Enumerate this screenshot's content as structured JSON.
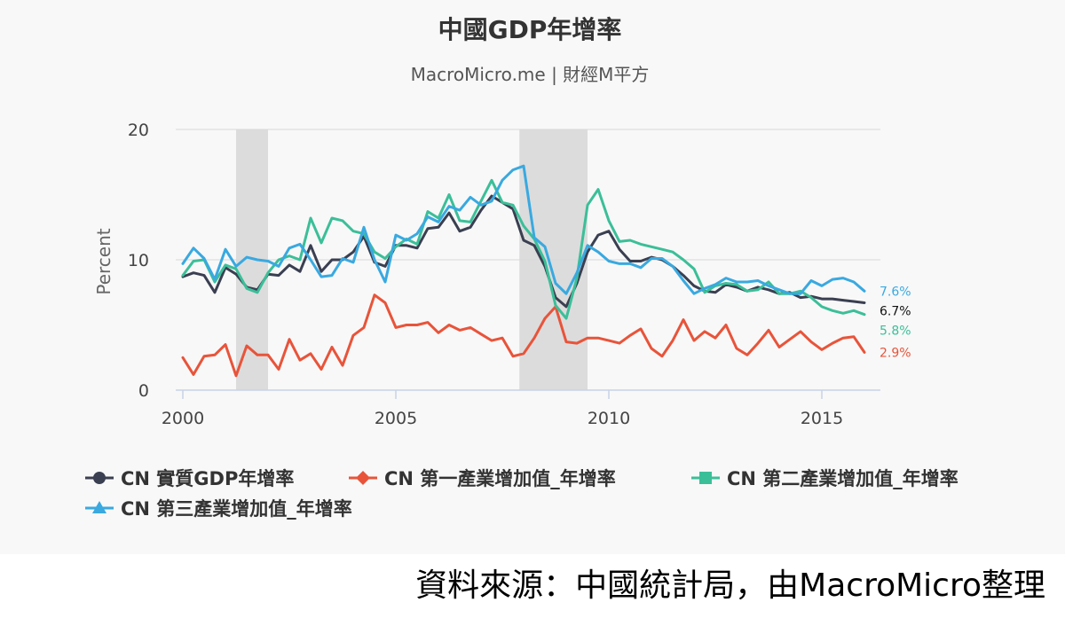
{
  "footer": {
    "source_note": "資料來源：中國統計局，由MacroMicro整理"
  },
  "colors": {
    "background": "#f8f8f8",
    "recession_band": "#dcdcdc",
    "grid": "#d8d8d8",
    "axis": "#c8d3e6"
  },
  "chart_data": {
    "type": "line",
    "title": "中國GDP年增率",
    "subtitle": "MacroMicro.me | 財經M平方",
    "ylabel": "Percent",
    "xlabel": "",
    "xlim": [
      2000.0,
      2016.25
    ],
    "ylim": [
      0,
      20
    ],
    "x_ticks": [
      2000,
      2005,
      2010,
      2015
    ],
    "y_ticks": [
      0,
      10,
      20
    ],
    "grid": "horizontal",
    "legend_position": "bottom-left",
    "recession_bands": [
      [
        2001.25,
        2002.0
      ],
      [
        2007.9,
        2009.5
      ]
    ],
    "x": [
      2000.0,
      2000.25,
      2000.5,
      2000.75,
      2001.0,
      2001.25,
      2001.5,
      2001.75,
      2002.0,
      2002.25,
      2002.5,
      2002.75,
      2003.0,
      2003.25,
      2003.5,
      2003.75,
      2004.0,
      2004.25,
      2004.5,
      2004.75,
      2005.0,
      2005.25,
      2005.5,
      2005.75,
      2006.0,
      2006.25,
      2006.5,
      2006.75,
      2007.0,
      2007.25,
      2007.5,
      2007.75,
      2008.0,
      2008.25,
      2008.5,
      2008.75,
      2009.0,
      2009.25,
      2009.5,
      2009.75,
      2010.0,
      2010.25,
      2010.5,
      2010.75,
      2011.0,
      2011.25,
      2011.5,
      2011.75,
      2012.0,
      2012.25,
      2012.5,
      2012.75,
      2013.0,
      2013.25,
      2013.5,
      2013.75,
      2014.0,
      2014.25,
      2014.5,
      2014.75,
      2015.0,
      2015.25,
      2015.5,
      2015.75,
      2016.0
    ],
    "series": [
      {
        "name": "CN 實質GDP年增率",
        "color": "#3a3f51",
        "marker": "circle",
        "end_label": "6.7%",
        "values": [
          8.7,
          9.0,
          8.8,
          7.5,
          9.4,
          8.9,
          7.9,
          7.7,
          8.9,
          8.8,
          9.6,
          9.1,
          11.1,
          9.1,
          10.0,
          10.0,
          10.6,
          11.8,
          9.8,
          9.5,
          11.1,
          11.1,
          10.9,
          12.4,
          12.5,
          13.6,
          12.2,
          12.5,
          13.8,
          14.9,
          14.4,
          13.9,
          11.5,
          11.1,
          9.5,
          7.1,
          6.4,
          8.2,
          10.6,
          11.9,
          12.2,
          10.8,
          9.9,
          9.9,
          10.2,
          10.0,
          9.5,
          8.8,
          8.0,
          7.6,
          7.5,
          8.1,
          7.9,
          7.6,
          7.9,
          7.7,
          7.4,
          7.5,
          7.1,
          7.2,
          7.0,
          7.0,
          6.9,
          6.8,
          6.7
        ]
      },
      {
        "name": "CN 第一產業增加值_年增率",
        "color": "#e8543a",
        "marker": "diamond",
        "end_label": "2.9%",
        "values": [
          2.5,
          1.2,
          2.6,
          2.7,
          3.5,
          1.1,
          3.4,
          2.7,
          2.7,
          1.6,
          3.9,
          2.3,
          2.8,
          1.6,
          3.3,
          1.9,
          4.2,
          4.8,
          7.3,
          6.7,
          4.8,
          5.0,
          5.0,
          5.2,
          4.4,
          5.0,
          4.6,
          4.8,
          4.3,
          3.8,
          4.0,
          2.6,
          2.8,
          4.0,
          5.5,
          6.4,
          3.7,
          3.6,
          4.0,
          4.0,
          3.8,
          3.6,
          4.2,
          4.7,
          3.2,
          2.6,
          3.8,
          5.4,
          3.8,
          4.5,
          4.0,
          5.0,
          3.2,
          2.7,
          3.6,
          4.6,
          3.3,
          3.9,
          4.5,
          3.7,
          3.1,
          3.6,
          4.0,
          4.1,
          2.9
        ]
      },
      {
        "name": "CN 第二產業增加值_年增率",
        "color": "#3bbf98",
        "marker": "square",
        "end_label": "5.8%",
        "values": [
          8.8,
          9.9,
          10.0,
          8.3,
          9.6,
          9.3,
          7.8,
          7.5,
          9.0,
          10.0,
          10.3,
          10.0,
          13.2,
          11.3,
          13.2,
          13.0,
          12.2,
          12.0,
          10.6,
          10.1,
          11.0,
          11.6,
          11.2,
          13.7,
          13.2,
          15.0,
          13.0,
          12.9,
          14.5,
          16.1,
          14.4,
          14.2,
          12.6,
          11.6,
          9.9,
          6.5,
          5.5,
          8.6,
          14.2,
          15.4,
          13.0,
          11.4,
          11.5,
          11.2,
          11.0,
          10.8,
          10.6,
          10.0,
          9.3,
          7.5,
          8.0,
          8.2,
          8.1,
          7.6,
          7.7,
          8.3,
          7.4,
          7.4,
          7.6,
          7.1,
          6.4,
          6.1,
          5.9,
          6.1,
          5.8
        ]
      },
      {
        "name": "CN 第三產業增加值_年增率",
        "color": "#39a9e0",
        "marker": "triangle",
        "end_label": "7.6%",
        "values": [
          9.7,
          10.9,
          10.1,
          8.5,
          10.8,
          9.5,
          10.2,
          10.0,
          9.9,
          9.5,
          10.9,
          11.2,
          10.0,
          8.7,
          8.8,
          10.1,
          9.8,
          12.5,
          10.0,
          8.3,
          11.9,
          11.5,
          12.0,
          13.3,
          12.9,
          14.1,
          13.8,
          14.8,
          14.2,
          14.5,
          16.1,
          16.9,
          17.2,
          11.7,
          11.0,
          8.2,
          7.4,
          9.0,
          11.1,
          10.6,
          9.9,
          9.7,
          9.7,
          9.4,
          10.1,
          10.1,
          9.5,
          8.4,
          7.4,
          7.8,
          8.1,
          8.6,
          8.3,
          8.3,
          8.4,
          8.0,
          7.7,
          7.4,
          7.4,
          8.4,
          8.0,
          8.5,
          8.6,
          8.3,
          7.6
        ]
      }
    ]
  }
}
